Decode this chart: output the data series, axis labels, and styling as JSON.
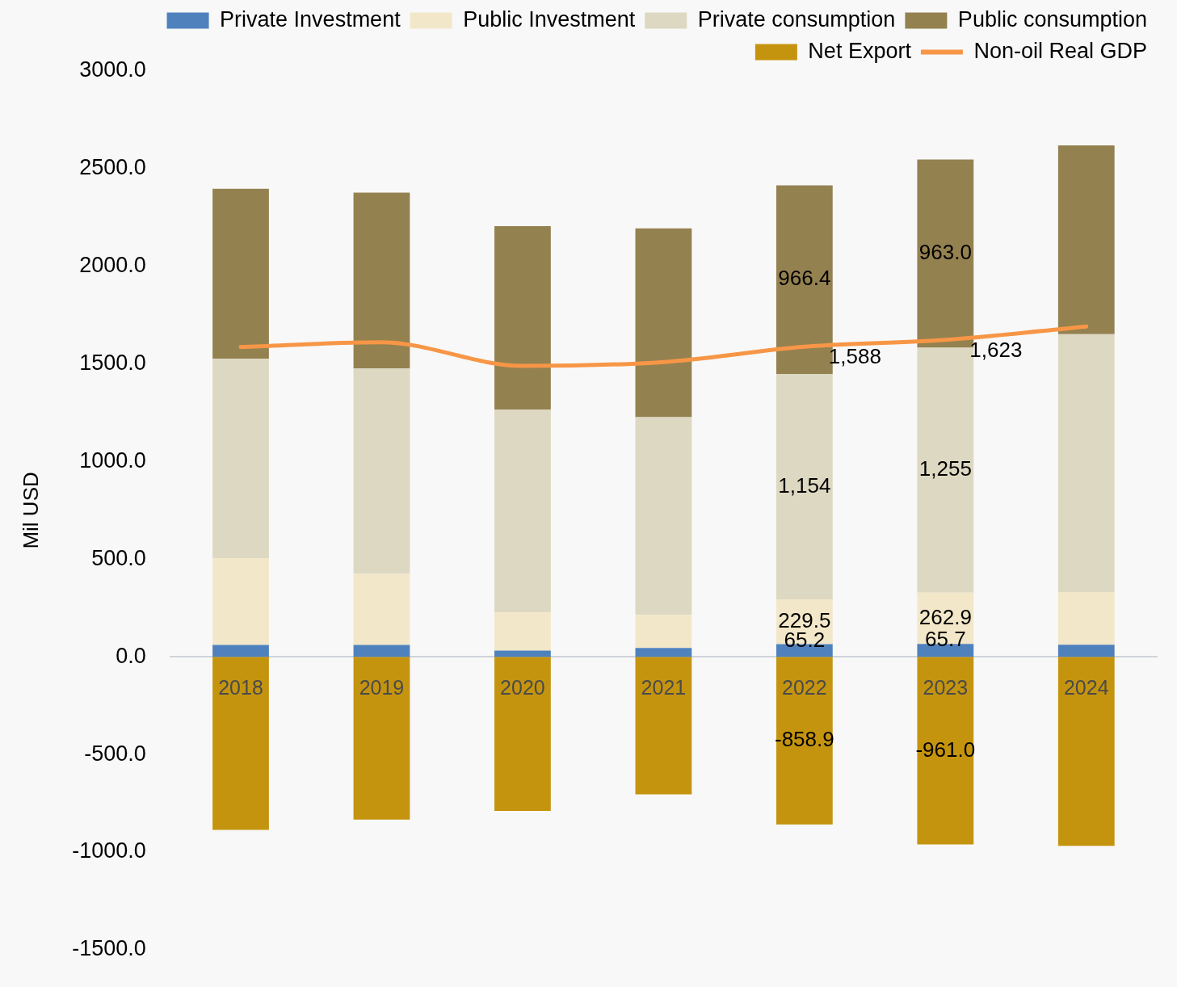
{
  "chart_data": {
    "type": "bar",
    "stacked": true,
    "ylabel": "Mil USD",
    "legend": "top",
    "categories": [
      "2018",
      "2019",
      "2020",
      "2021",
      "2022",
      "2023",
      "2024"
    ],
    "ylim": [
      -1500,
      3000
    ],
    "yticks": [
      {
        "value": -1500,
        "label": "-1500.0"
      },
      {
        "value": -1000,
        "label": "-1000.0"
      },
      {
        "value": -500,
        "label": "-500.0"
      },
      {
        "value": 0,
        "label": "0.0"
      },
      {
        "value": 500,
        "label": "500.0"
      },
      {
        "value": 1000,
        "label": "1000.0"
      },
      {
        "value": 1500,
        "label": "1500.0"
      },
      {
        "value": 2000,
        "label": "2000.0"
      },
      {
        "value": 2500,
        "label": "2500.0"
      },
      {
        "value": 3000,
        "label": "3000.0"
      }
    ],
    "series": [
      {
        "name": "Private Investment",
        "color": "#4f81bd",
        "values": [
          61,
          61,
          32,
          45,
          65.2,
          65.7,
          62
        ],
        "value_labels": [
          null,
          null,
          null,
          null,
          "65.2",
          "65.7",
          null
        ]
      },
      {
        "name": "Public Investment",
        "color": "#f2e7c8",
        "values": [
          445,
          364,
          195,
          170,
          229.5,
          262.9,
          270
        ],
        "value_labels": [
          null,
          null,
          null,
          null,
          "229.5",
          "262.9",
          null
        ]
      },
      {
        "name": "Private consumption",
        "color": "#ddd8c2",
        "values": [
          1020,
          1053,
          1040,
          1012,
          1154,
          1255,
          1320
        ],
        "value_labels": [
          null,
          null,
          null,
          null,
          "1,154",
          "1,255",
          null
        ]
      },
      {
        "name": "Public consumption",
        "color": "#948150",
        "values": [
          871,
          899,
          939,
          967,
          966.4,
          963.0,
          967
        ],
        "value_labels": [
          null,
          null,
          null,
          null,
          "966.4",
          "963.0",
          null
        ]
      },
      {
        "name": "Net Export",
        "color": "#c5940f",
        "values": [
          -887,
          -834,
          -789,
          -704,
          -858.9,
          -961.0,
          -968
        ],
        "value_labels": [
          null,
          null,
          null,
          null,
          "-858.9",
          "-961.0",
          null
        ]
      },
      {
        "name": "Non-oil Real GDP",
        "type": "line",
        "color": "#f79646",
        "values": [
          1587,
          1611,
          1490,
          1510,
          1588,
          1623,
          1692
        ],
        "value_labels": [
          null,
          null,
          null,
          null,
          "1,588",
          "1,623",
          null
        ]
      }
    ]
  }
}
